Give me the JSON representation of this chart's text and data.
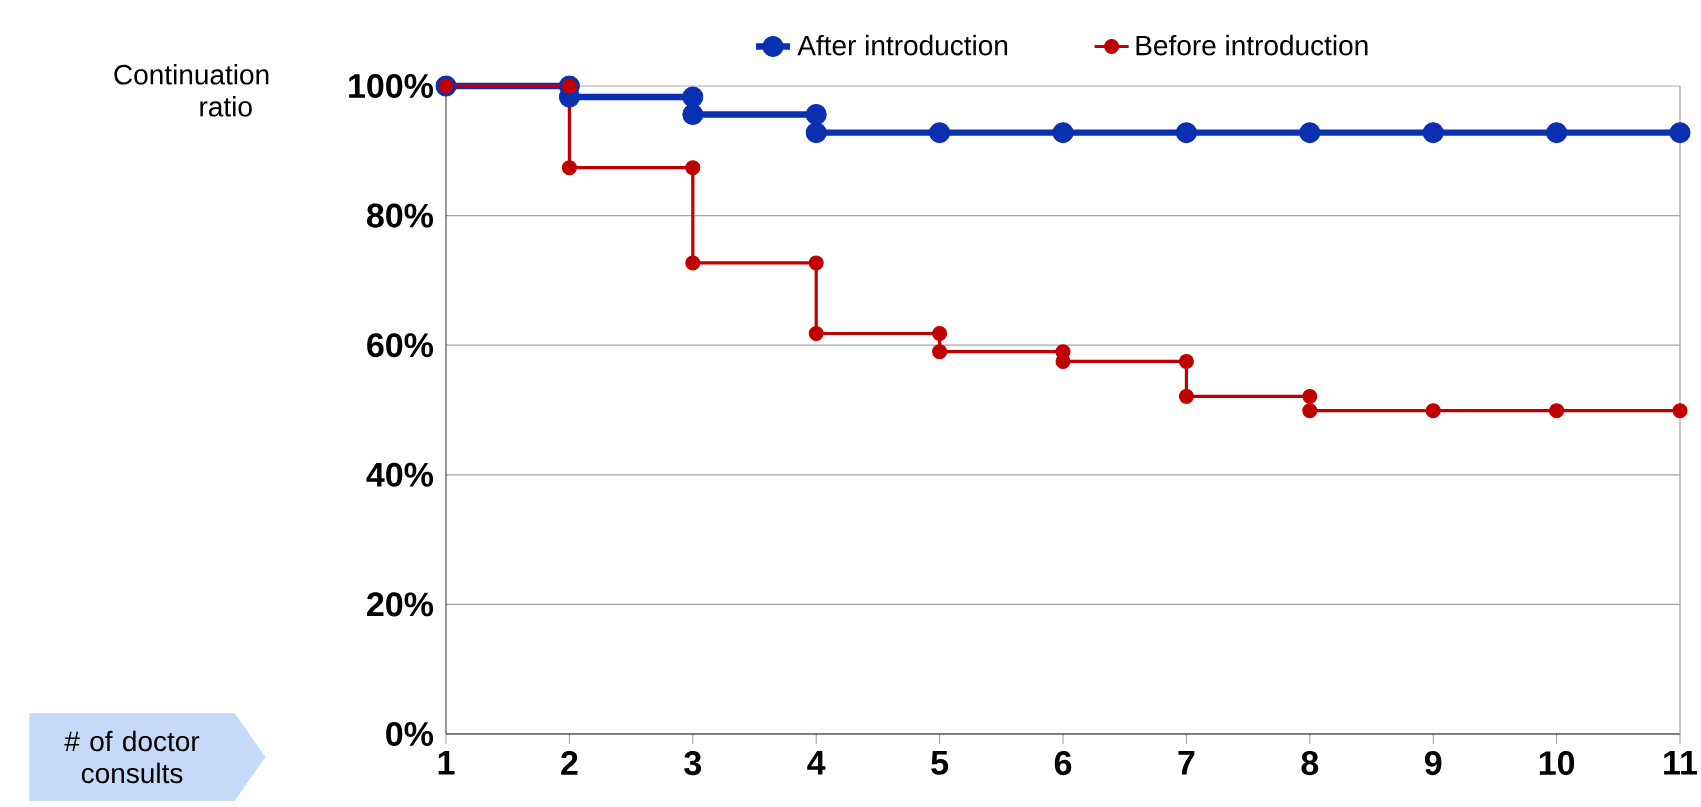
{
  "chart_data": {
    "type": "line",
    "annotations": [
      "# of doctor consults"
    ],
    "ylabel": "Continuation ratio",
    "xlim": [
      1,
      11
    ],
    "ylim": [
      0,
      100
    ],
    "xticks": [
      1,
      2,
      3,
      4,
      5,
      6,
      7,
      8,
      9,
      10,
      11
    ],
    "yticks": [
      {
        "value": 0,
        "label": "0%"
      },
      {
        "value": 20,
        "label": "20%"
      },
      {
        "value": 40,
        "label": "40%"
      },
      {
        "value": 60,
        "label": "60%"
      },
      {
        "value": 80,
        "label": "80%"
      },
      {
        "value": 100,
        "label": "100%"
      }
    ],
    "grid": "y",
    "legend": "top",
    "marker": "circle",
    "line_style": "solid",
    "series": [
      {
        "name": "After introduction",
        "color": "#0a2fb0",
        "x": [
          1,
          2,
          2,
          3,
          3,
          4,
          4,
          5,
          6,
          7,
          8,
          9,
          10,
          11
        ],
        "values": [
          100,
          100,
          98.3,
          98.3,
          95.6,
          95.6,
          92.8,
          92.8,
          92.8,
          92.8,
          92.8,
          92.8,
          92.8,
          92.8
        ]
      },
      {
        "name": "Before introduction",
        "color": "#c00000",
        "x": [
          1,
          2,
          2,
          3,
          3,
          4,
          4,
          5,
          5,
          6,
          6,
          7,
          7,
          8,
          8,
          9,
          10,
          11
        ],
        "values": [
          100,
          100,
          87.4,
          87.4,
          72.7,
          72.7,
          61.8,
          61.8,
          59.0,
          59.0,
          57.5,
          57.5,
          52.1,
          52.1,
          49.9,
          49.9,
          49.9,
          49.9
        ]
      }
    ]
  }
}
